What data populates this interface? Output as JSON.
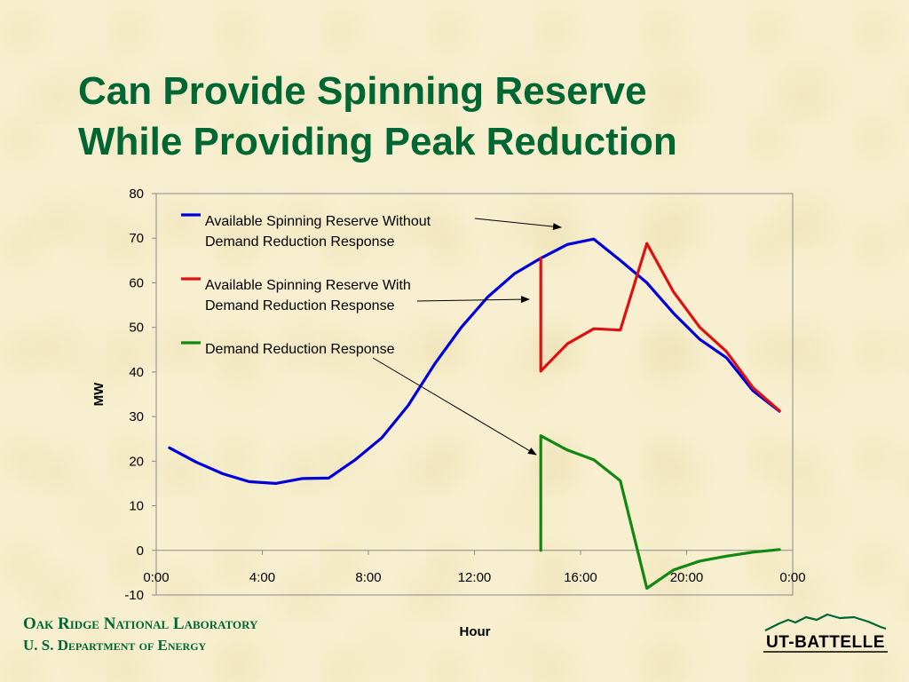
{
  "slide": {
    "title_line1": "Can Provide Spinning Reserve",
    "title_line2": "While Providing Peak Reduction",
    "footer_line1": "Oak Ridge National Laboratory",
    "footer_line2": "U. S. Department of Energy",
    "logo_text": "UT-BATTELLE",
    "colors": {
      "title": "#006633",
      "background": "#f7efcf",
      "series_blue": "#0000dd",
      "series_red": "#dd1111",
      "series_green": "#118811"
    }
  },
  "chart_data": {
    "type": "line",
    "xlabel": "Hour",
    "ylabel": "MW",
    "ylim": [
      -10,
      80
    ],
    "y_ticks": [
      80,
      70,
      60,
      50,
      40,
      30,
      20,
      10,
      0,
      -10
    ],
    "xlim_hours": [
      0,
      24
    ],
    "x_ticks": [
      {
        "label": "0:00",
        "hour": 0
      },
      {
        "label": "4:00",
        "hour": 4
      },
      {
        "label": "8:00",
        "hour": 8
      },
      {
        "label": "12:00",
        "hour": 12
      },
      {
        "label": "16:00",
        "hour": 16
      },
      {
        "label": "20:00",
        "hour": 20
      },
      {
        "label": "0:00",
        "hour": 24
      }
    ],
    "grid": false,
    "legend_placement": "top-left",
    "series": [
      {
        "name": "Available Spinning Reserve Without Demand Reduction Response",
        "legend_lines": [
          "Available Spinning Reserve Without",
          "Demand Reduction Response"
        ],
        "color": "#0000dd",
        "points": [
          [
            0.5,
            23
          ],
          [
            1.5,
            19.8
          ],
          [
            2.5,
            17.2
          ],
          [
            3.5,
            15.4
          ],
          [
            4.5,
            15
          ],
          [
            5.5,
            16.1
          ],
          [
            6.5,
            16.2
          ],
          [
            7.5,
            20.3
          ],
          [
            8.5,
            25.2
          ],
          [
            9.5,
            32.5
          ],
          [
            10.5,
            41.8
          ],
          [
            11.5,
            50
          ],
          [
            12.5,
            56.8
          ],
          [
            13.5,
            62
          ],
          [
            14.5,
            65.5
          ],
          [
            15.5,
            68.6
          ],
          [
            16.5,
            69.8
          ],
          [
            17.5,
            65
          ],
          [
            18.5,
            60
          ],
          [
            19.5,
            53.2
          ],
          [
            20.5,
            47.3
          ],
          [
            21.5,
            43.2
          ],
          [
            22.5,
            35.8
          ],
          [
            23.5,
            31.2
          ]
        ]
      },
      {
        "name": "Available Spinning Reserve With Demand Reduction Response",
        "legend_lines": [
          "Available Spinning Reserve With",
          "Demand Reduction Response"
        ],
        "color": "#dd1111",
        "points": [
          [
            14.5,
            65.5
          ],
          [
            14.5,
            40.2
          ],
          [
            15.5,
            46.3
          ],
          [
            16.5,
            49.7
          ],
          [
            17.5,
            49.4
          ],
          [
            18.5,
            68.8
          ],
          [
            19.5,
            58
          ],
          [
            20.5,
            50
          ],
          [
            21.5,
            44.6
          ],
          [
            22.5,
            36.5
          ],
          [
            23.5,
            31.3
          ]
        ]
      },
      {
        "name": "Demand Reduction Response",
        "legend_lines": [
          "Demand Reduction Response"
        ],
        "color": "#118811",
        "points": [
          [
            14.5,
            0
          ],
          [
            14.5,
            25.7
          ],
          [
            15.5,
            22.5
          ],
          [
            16.5,
            20.3
          ],
          [
            17.5,
            15.6
          ],
          [
            18.5,
            -8.5
          ],
          [
            19.5,
            -4.4
          ],
          [
            20.5,
            -2.4
          ],
          [
            21.5,
            -1.3
          ],
          [
            22.5,
            -0.4
          ],
          [
            23.5,
            0.2
          ]
        ]
      }
    ]
  }
}
